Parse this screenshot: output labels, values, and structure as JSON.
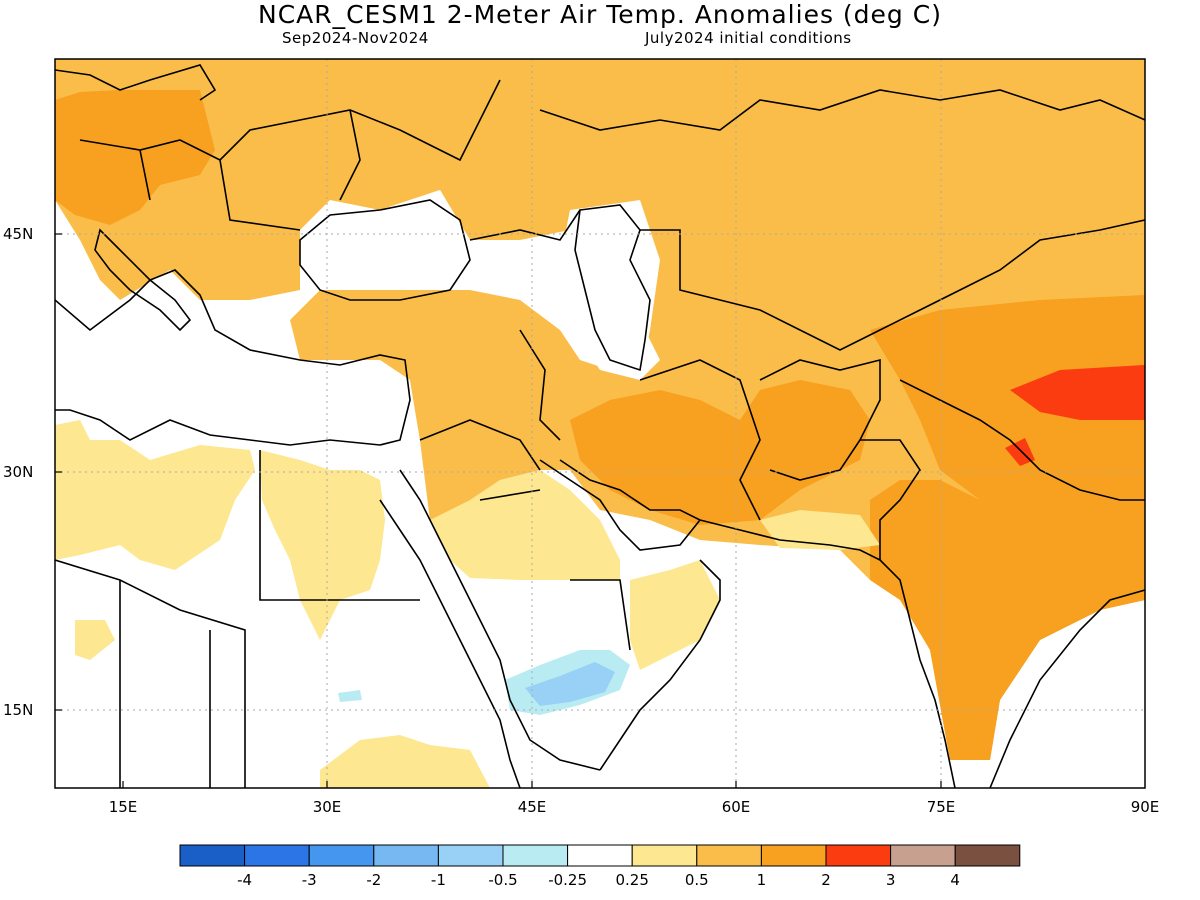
{
  "title": "NCAR_CESM1 2-Meter Air Temp. Anomalies (deg C)",
  "subtitle_left": "Sep2024-Nov2024",
  "subtitle_right": "July2024 initial conditions",
  "map": {
    "lon_range": [
      10,
      90
    ],
    "lat_range": [
      10,
      55
    ],
    "lon_ticks": [
      "15E",
      "30E",
      "45E",
      "60E",
      "75E",
      "90E"
    ],
    "lat_ticks": [
      "45N",
      "30N",
      "15N"
    ],
    "grid": "dotted"
  },
  "colorbar": {
    "colors": [
      "#1a5fc8",
      "#2c75e6",
      "#4596ee",
      "#78b8f2",
      "#98d0f6",
      "#b8ecf2",
      "#ffffff",
      "#fde790",
      "#fbbd4a",
      "#f8a020",
      "#fa3c10",
      "#c8a090",
      "#7a5040"
    ],
    "labels": [
      "-4",
      "-3",
      "-2",
      "-1",
      "-0.5",
      "-0.25",
      "0.25",
      "0.5",
      "1",
      "2",
      "3",
      "4"
    ]
  }
}
